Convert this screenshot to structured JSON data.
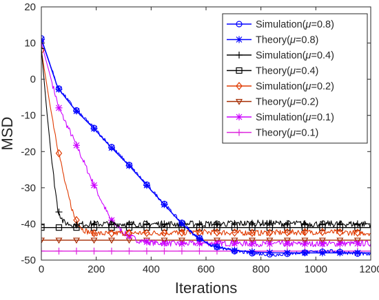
{
  "chart_data": {
    "type": "line",
    "title": "",
    "xlabel": "Iterations",
    "ylabel": "MSD",
    "xlim": [
      0,
      1200
    ],
    "ylim": [
      -50,
      20
    ],
    "xticks": [
      0,
      200,
      400,
      600,
      800,
      1000,
      1200
    ],
    "yticks": [
      20,
      10,
      0,
      -10,
      -20,
      -30,
      -40,
      -50
    ],
    "grid": false,
    "legend_position": "top-right",
    "series": [
      {
        "name": "Simulation(μ=0.8)",
        "color": "#0000ff",
        "marker": "circle",
        "style": "solid",
        "noise": 0.5,
        "x": [
          0,
          60,
          120,
          190,
          250,
          320,
          380,
          440,
          500,
          560,
          620,
          700,
          780,
          860,
          940,
          1000,
          1060,
          1120,
          1200
        ],
        "values": [
          11.3,
          -2.2,
          -8.0,
          -13.3,
          -18.3,
          -23.7,
          -28.8,
          -33.8,
          -38.8,
          -43.2,
          -46.0,
          -47.5,
          -48.2,
          -48.5,
          -48.0,
          -47.8,
          -47.5,
          -48.0,
          -48.5
        ]
      },
      {
        "name": "Theory(μ=0.8)",
        "color": "#0000ff",
        "marker": "asterisk",
        "style": "solid",
        "noise": 0,
        "x": [
          0,
          60,
          120,
          190,
          250,
          320,
          380,
          440,
          500,
          560,
          620,
          700,
          780,
          860,
          940,
          1000,
          1060,
          1120,
          1200
        ],
        "values": [
          11.0,
          -2.4,
          -8.2,
          -13.5,
          -18.5,
          -23.9,
          -29.0,
          -34.0,
          -39.0,
          -43.3,
          -46.0,
          -47.3,
          -47.8,
          -48.0,
          -48.0,
          -48.0,
          -48.0,
          -48.0,
          -48.0
        ]
      },
      {
        "name": "Simulation(μ=0.4)",
        "color": "#000000",
        "marker": "plus",
        "style": "solid",
        "noise": 0.9,
        "x": [
          0,
          20,
          40,
          60,
          80,
          100,
          130,
          160,
          200,
          300,
          400,
          600,
          800,
          1000,
          1200
        ],
        "values": [
          8.5,
          -9,
          -24,
          -36,
          -39.5,
          -40.0,
          -40.3,
          -40.0,
          -40.0,
          -40.0,
          -40.0,
          -40.0,
          -39.8,
          -40.0,
          -40.0
        ]
      },
      {
        "name": "Theory(μ=0.4)",
        "color": "#000000",
        "marker": "square",
        "style": "solid",
        "noise": 0,
        "x": [
          0,
          1200
        ],
        "values": [
          -41.0,
          -41.0
        ]
      },
      {
        "name": "Simulation(μ=0.2)",
        "color": "#e03a00",
        "marker": "diamond",
        "style": "solid",
        "noise": 0.8,
        "x": [
          0,
          30,
          60,
          90,
          120,
          150,
          180,
          220,
          300,
          400,
          600,
          800,
          1000,
          1200
        ],
        "values": [
          8.0,
          -6.5,
          -19.0,
          -30.0,
          -38.0,
          -41.5,
          -42.5,
          -42.7,
          -42.5,
          -42.5,
          -42.3,
          -42.5,
          -42.2,
          -42.5
        ]
      },
      {
        "name": "Theory(μ=0.2)",
        "color": "#a52a00",
        "marker": "triangle-down",
        "style": "solid",
        "noise": 0,
        "x": [
          0,
          1200
        ],
        "values": [
          -44.5,
          -44.5
        ]
      },
      {
        "name": "Simulation(μ=0.1)",
        "color": "#cc00ff",
        "marker": "asterisk",
        "style": "solid",
        "noise": 0.8,
        "x": [
          0,
          65,
          130,
          190,
          250,
          300,
          350,
          400,
          500,
          600,
          800,
          1000,
          1200
        ],
        "values": [
          10.0,
          -8.2,
          -18.6,
          -29.0,
          -38.5,
          -42.5,
          -44.5,
          -45.2,
          -45.5,
          -45.3,
          -45.5,
          -45.5,
          -45.4
        ]
      },
      {
        "name": "Theory(μ=0.1)",
        "color": "#dd22dd",
        "marker": "plus",
        "style": "solid",
        "noise": 0,
        "x": [
          0,
          1200
        ],
        "values": [
          -47.5,
          -47.5
        ]
      }
    ]
  }
}
